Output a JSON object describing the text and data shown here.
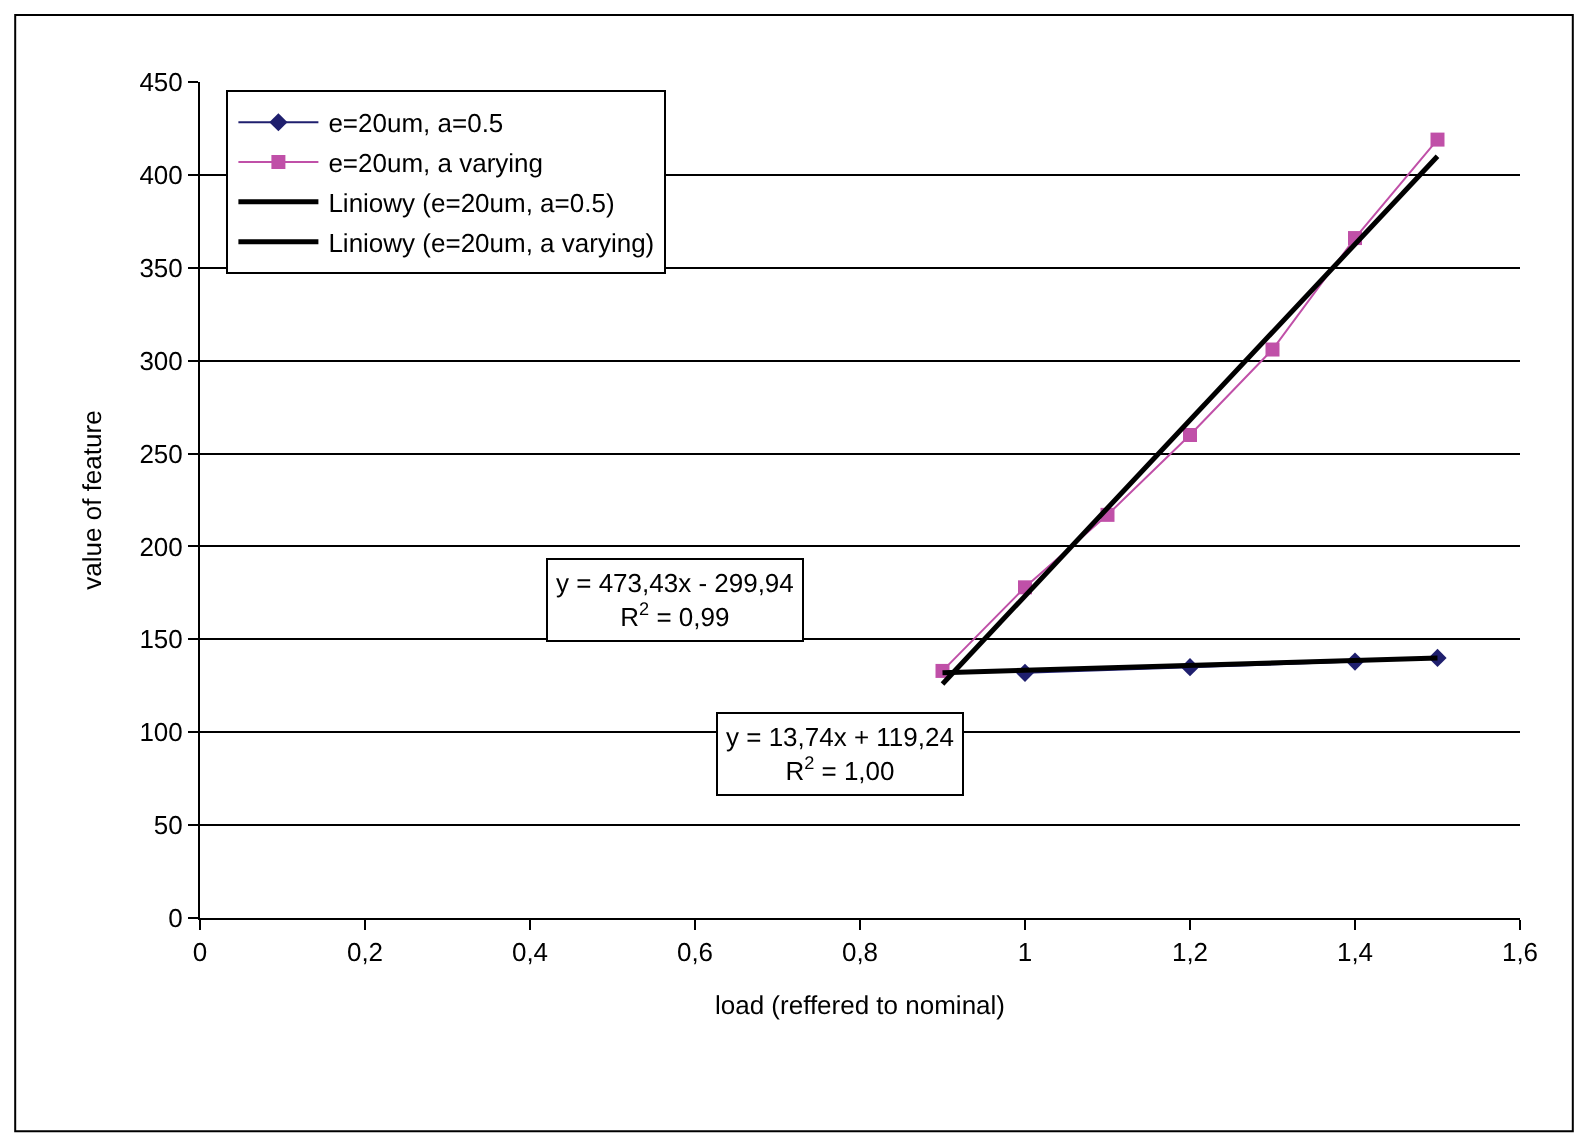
{
  "chart_data": {
    "type": "line",
    "xlabel": "load (reffered to nominal)",
    "ylabel": "value of feature",
    "series": [
      {
        "name": "e=20um, a=0.5",
        "color": "#1f1f6e",
        "marker": "diamond",
        "x": [
          1.0,
          1.2,
          1.4,
          1.5
        ],
        "values": [
          132,
          135,
          138,
          140
        ]
      },
      {
        "name": "e=20um, a varying",
        "color": "#c050a8",
        "marker": "square",
        "x": [
          0.9,
          1.0,
          1.1,
          1.2,
          1.3,
          1.4,
          1.5
        ],
        "values": [
          133,
          178,
          217,
          260,
          306,
          366,
          419
        ]
      },
      {
        "name": "Liniowy (e=20um, a=0.5)",
        "color": "#000000",
        "marker": "none",
        "x": [
          0.9,
          1.5
        ],
        "values": [
          132,
          140
        ]
      },
      {
        "name": "Liniowy (e=20um, a varying)",
        "color": "#000000",
        "marker": "none",
        "x": [
          0.9,
          1.5
        ],
        "values": [
          126,
          410
        ]
      }
    ],
    "annotations": [
      "y = 473,43x - 299,94\nR$^{2}$ = 0,99",
      "y = 13,74x + 119,24\nR$^{2}$ = 1,00"
    ],
    "xlim": [
      0,
      1.6
    ],
    "xticks": [
      0,
      {
        "value": 0.2,
        "label": "0,2"
      },
      {
        "value": 0.4,
        "label": "0,4"
      },
      {
        "value": 0.6,
        "label": "0,6"
      },
      {
        "value": 0.8,
        "label": "0,8"
      },
      1,
      {
        "value": 1.2,
        "label": "1,2"
      },
      {
        "value": 1.4,
        "label": "1,4"
      },
      {
        "value": 1.6,
        "label": "1,6"
      }
    ],
    "ylim": [
      0,
      450
    ],
    "yticks": [
      0,
      50,
      100,
      150,
      200,
      250,
      300,
      350,
      400,
      450
    ],
    "grid": "y",
    "legend": "top left"
  }
}
